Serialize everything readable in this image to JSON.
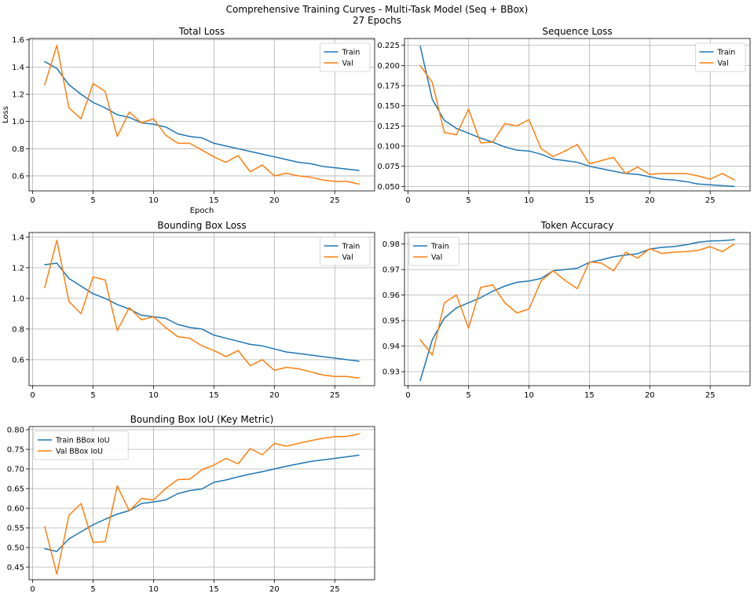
{
  "figure": {
    "title_line1": "Comprehensive Training Curves - Multi-Task Model (Seq + BBox)",
    "title_line2": "27 Epochs"
  },
  "colors": {
    "train": "#1f77b4",
    "val": "#ff7f0e"
  },
  "chart_data": [
    {
      "id": "total-loss",
      "type": "line",
      "title": "Total Loss",
      "xlabel": "Epoch",
      "ylabel": "Loss",
      "xlim": [
        -0.3,
        28.3
      ],
      "ylim": [
        0.49,
        1.61
      ],
      "xticks": [
        0,
        5,
        10,
        15,
        20,
        25
      ],
      "yticks": [
        0.6,
        0.8,
        1.0,
        1.2,
        1.4,
        1.6
      ],
      "ytick_decimals": 1,
      "grid": true,
      "legend": "upper-right",
      "x": [
        1,
        2,
        3,
        4,
        5,
        6,
        7,
        8,
        9,
        10,
        11,
        12,
        13,
        14,
        15,
        16,
        17,
        18,
        19,
        20,
        21,
        22,
        23,
        24,
        25,
        26,
        27
      ],
      "series": [
        {
          "name": "Train",
          "color": "#1f77b4",
          "values": [
            1.44,
            1.39,
            1.27,
            1.2,
            1.14,
            1.1,
            1.05,
            1.03,
            0.99,
            0.98,
            0.96,
            0.91,
            0.89,
            0.88,
            0.84,
            0.82,
            0.8,
            0.78,
            0.76,
            0.74,
            0.72,
            0.7,
            0.69,
            0.67,
            0.66,
            0.65,
            0.64
          ]
        },
        {
          "name": "Val",
          "color": "#ff7f0e",
          "values": [
            1.27,
            1.56,
            1.1,
            1.02,
            1.28,
            1.22,
            0.89,
            1.07,
            0.99,
            1.02,
            0.9,
            0.84,
            0.84,
            0.79,
            0.74,
            0.7,
            0.75,
            0.63,
            0.68,
            0.6,
            0.62,
            0.6,
            0.59,
            0.57,
            0.56,
            0.56,
            0.54
          ]
        }
      ]
    },
    {
      "id": "sequence-loss",
      "type": "line",
      "title": "Sequence Loss",
      "xlabel": "",
      "ylabel": "",
      "xlim": [
        -0.3,
        28.3
      ],
      "ylim": [
        0.0445,
        0.2335
      ],
      "xticks": [
        0,
        5,
        10,
        15,
        20,
        25
      ],
      "yticks": [
        0.05,
        0.075,
        0.1,
        0.125,
        0.15,
        0.175,
        0.2,
        0.225
      ],
      "ytick_decimals": 3,
      "grid": true,
      "legend": "upper-right",
      "x": [
        1,
        2,
        3,
        4,
        5,
        6,
        7,
        8,
        9,
        10,
        11,
        12,
        13,
        14,
        15,
        16,
        17,
        18,
        19,
        20,
        21,
        22,
        23,
        24,
        25,
        26,
        27
      ],
      "series": [
        {
          "name": "Train",
          "color": "#1f77b4",
          "values": [
            0.224,
            0.158,
            0.132,
            0.122,
            0.116,
            0.11,
            0.105,
            0.099,
            0.095,
            0.094,
            0.09,
            0.084,
            0.082,
            0.08,
            0.075,
            0.072,
            0.069,
            0.066,
            0.065,
            0.062,
            0.059,
            0.058,
            0.056,
            0.053,
            0.052,
            0.051,
            0.05
          ]
        },
        {
          "name": "Val",
          "color": "#ff7f0e",
          "values": [
            0.2,
            0.179,
            0.117,
            0.114,
            0.146,
            0.104,
            0.105,
            0.128,
            0.125,
            0.133,
            0.097,
            0.087,
            0.094,
            0.102,
            0.078,
            0.082,
            0.086,
            0.066,
            0.074,
            0.065,
            0.066,
            0.066,
            0.066,
            0.063,
            0.059,
            0.066,
            0.058
          ]
        }
      ]
    },
    {
      "id": "bbox-loss",
      "type": "line",
      "title": "Bounding Box Loss",
      "xlabel": "",
      "ylabel": "",
      "xlim": [
        -0.3,
        28.3
      ],
      "ylim": [
        0.43,
        1.43
      ],
      "xticks": [
        0,
        5,
        10,
        15,
        20,
        25
      ],
      "yticks": [
        0.6,
        0.8,
        1.0,
        1.2,
        1.4
      ],
      "ytick_decimals": 1,
      "grid": true,
      "legend": "upper-right",
      "x": [
        1,
        2,
        3,
        4,
        5,
        6,
        7,
        8,
        9,
        10,
        11,
        12,
        13,
        14,
        15,
        16,
        17,
        18,
        19,
        20,
        21,
        22,
        23,
        24,
        25,
        26,
        27
      ],
      "series": [
        {
          "name": "Train",
          "color": "#1f77b4",
          "values": [
            1.22,
            1.23,
            1.13,
            1.08,
            1.03,
            1.0,
            0.96,
            0.93,
            0.89,
            0.88,
            0.87,
            0.83,
            0.81,
            0.8,
            0.76,
            0.74,
            0.72,
            0.7,
            0.69,
            0.67,
            0.65,
            0.64,
            0.63,
            0.62,
            0.61,
            0.6,
            0.59
          ]
        },
        {
          "name": "Val",
          "color": "#ff7f0e",
          "values": [
            1.07,
            1.38,
            0.98,
            0.9,
            1.14,
            1.12,
            0.79,
            0.94,
            0.86,
            0.88,
            0.81,
            0.75,
            0.74,
            0.69,
            0.66,
            0.62,
            0.66,
            0.56,
            0.6,
            0.53,
            0.55,
            0.54,
            0.52,
            0.5,
            0.49,
            0.49,
            0.48
          ]
        }
      ]
    },
    {
      "id": "token-accuracy",
      "type": "line",
      "title": "Token Accuracy",
      "xlabel": "",
      "ylabel": "",
      "xlim": [
        -0.3,
        28.3
      ],
      "ylim": [
        0.9245,
        0.9845
      ],
      "xticks": [
        0,
        5,
        10,
        15,
        20,
        25
      ],
      "yticks": [
        0.93,
        0.94,
        0.95,
        0.96,
        0.97,
        0.98
      ],
      "ytick_decimals": 2,
      "grid": true,
      "legend": "upper-left",
      "x": [
        1,
        2,
        3,
        4,
        5,
        6,
        7,
        8,
        9,
        10,
        11,
        12,
        13,
        14,
        15,
        16,
        17,
        18,
        19,
        20,
        21,
        22,
        23,
        24,
        25,
        26,
        27
      ],
      "series": [
        {
          "name": "Train",
          "color": "#1f77b4",
          "values": [
            0.9265,
            0.9425,
            0.951,
            0.955,
            0.957,
            0.959,
            0.9615,
            0.9635,
            0.965,
            0.9655,
            0.9665,
            0.9695,
            0.97,
            0.9705,
            0.9728,
            0.9738,
            0.975,
            0.9757,
            0.9762,
            0.978,
            0.9787,
            0.979,
            0.9797,
            0.9807,
            0.9812,
            0.9813,
            0.9817
          ]
        },
        {
          "name": "Val",
          "color": "#ff7f0e",
          "values": [
            0.9425,
            0.9365,
            0.957,
            0.96,
            0.947,
            0.963,
            0.964,
            0.957,
            0.953,
            0.9545,
            0.9655,
            0.9695,
            0.9657,
            0.9625,
            0.973,
            0.9725,
            0.9695,
            0.9768,
            0.9745,
            0.9782,
            0.9763,
            0.9768,
            0.977,
            0.9775,
            0.979,
            0.977,
            0.98
          ]
        }
      ]
    },
    {
      "id": "bbox-iou",
      "type": "line",
      "title": "Bounding Box IoU (Key Metric)",
      "xlabel": "",
      "ylabel": "",
      "xlim": [
        -0.3,
        28.3
      ],
      "ylim": [
        0.418,
        0.808
      ],
      "xticks": [
        0,
        5,
        10,
        15,
        20,
        25
      ],
      "yticks": [
        0.45,
        0.5,
        0.55,
        0.6,
        0.65,
        0.7,
        0.75,
        0.8
      ],
      "ytick_decimals": 2,
      "grid": true,
      "legend": "upper-left",
      "x": [
        1,
        2,
        3,
        4,
        5,
        6,
        7,
        8,
        9,
        10,
        11,
        12,
        13,
        14,
        15,
        16,
        17,
        18,
        19,
        20,
        21,
        22,
        23,
        24,
        25,
        26,
        27
      ],
      "series": [
        {
          "name": "Train BBox IoU",
          "color": "#1f77b4",
          "values": [
            0.497,
            0.49,
            0.522,
            0.54,
            0.558,
            0.572,
            0.585,
            0.594,
            0.612,
            0.616,
            0.621,
            0.637,
            0.645,
            0.649,
            0.666,
            0.672,
            0.68,
            0.687,
            0.693,
            0.7,
            0.707,
            0.713,
            0.719,
            0.723,
            0.727,
            0.731,
            0.735
          ]
        },
        {
          "name": "Val BBox IoU",
          "color": "#ff7f0e",
          "values": [
            0.553,
            0.432,
            0.582,
            0.612,
            0.513,
            0.515,
            0.657,
            0.593,
            0.625,
            0.621,
            0.65,
            0.673,
            0.674,
            0.698,
            0.71,
            0.727,
            0.713,
            0.752,
            0.736,
            0.765,
            0.758,
            0.765,
            0.772,
            0.778,
            0.782,
            0.783,
            0.789
          ]
        }
      ]
    }
  ]
}
